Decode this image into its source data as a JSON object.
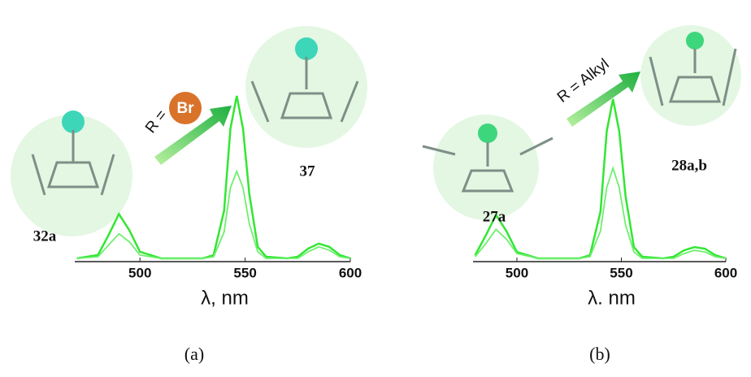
{
  "chart_data": [
    {
      "type": "line",
      "label": "(a)",
      "xlabel": "λ, nm",
      "x": [
        470,
        480,
        485,
        490,
        495,
        500,
        510,
        520,
        530,
        535,
        540,
        543,
        546,
        549,
        552,
        556,
        560,
        570,
        575,
        580,
        585,
        590,
        595,
        600
      ],
      "series": [
        {
          "color": "#33e633",
          "values": [
            0.01,
            0.03,
            0.15,
            0.28,
            0.18,
            0.05,
            0.01,
            0.01,
            0.01,
            0.03,
            0.3,
            0.8,
            1.0,
            0.8,
            0.4,
            0.08,
            0.02,
            0.01,
            0.02,
            0.07,
            0.1,
            0.08,
            0.03,
            0.01
          ]
        },
        {
          "color": "#6fef6f",
          "values": [
            0.01,
            0.02,
            0.09,
            0.16,
            0.11,
            0.03,
            0.01,
            0.01,
            0.01,
            0.02,
            0.17,
            0.44,
            0.54,
            0.44,
            0.22,
            0.05,
            0.01,
            0.01,
            0.01,
            0.05,
            0.08,
            0.06,
            0.02,
            0.01
          ]
        }
      ],
      "xlim": [
        469,
        600
      ],
      "ylim": [
        0,
        1
      ],
      "xticks": [
        500,
        550,
        600
      ],
      "annotations": [
        {
          "text": "32a"
        },
        {
          "text": "37"
        },
        {
          "text": "R = "
        },
        {
          "text": "Br"
        }
      ]
    },
    {
      "type": "line",
      "label": "(b)",
      "xlabel": "λ. nm",
      "x": [
        480,
        485,
        490,
        495,
        500,
        510,
        520,
        530,
        535,
        540,
        543,
        546,
        549,
        552,
        556,
        560,
        570,
        575,
        580,
        585,
        590,
        595,
        600
      ],
      "series": [
        {
          "color": "#33e633",
          "values": [
            0.03,
            0.15,
            0.28,
            0.18,
            0.05,
            0.01,
            0.01,
            0.01,
            0.03,
            0.3,
            0.8,
            1.0,
            0.8,
            0.4,
            0.08,
            0.02,
            0.01,
            0.02,
            0.06,
            0.08,
            0.07,
            0.03,
            0.01
          ]
        },
        {
          "color": "#6fef6f",
          "values": [
            0.02,
            0.1,
            0.19,
            0.13,
            0.04,
            0.01,
            0.01,
            0.01,
            0.02,
            0.18,
            0.45,
            0.57,
            0.45,
            0.22,
            0.05,
            0.01,
            0.01,
            0.01,
            0.04,
            0.06,
            0.05,
            0.02,
            0.01
          ]
        }
      ],
      "xlim": [
        479,
        600
      ],
      "ylim": [
        0,
        1
      ],
      "xticks": [
        500,
        550,
        600
      ],
      "annotations": [
        {
          "text": "27a"
        },
        {
          "text": "28a,b"
        },
        {
          "text": "R = Alkyl"
        }
      ]
    }
  ]
}
